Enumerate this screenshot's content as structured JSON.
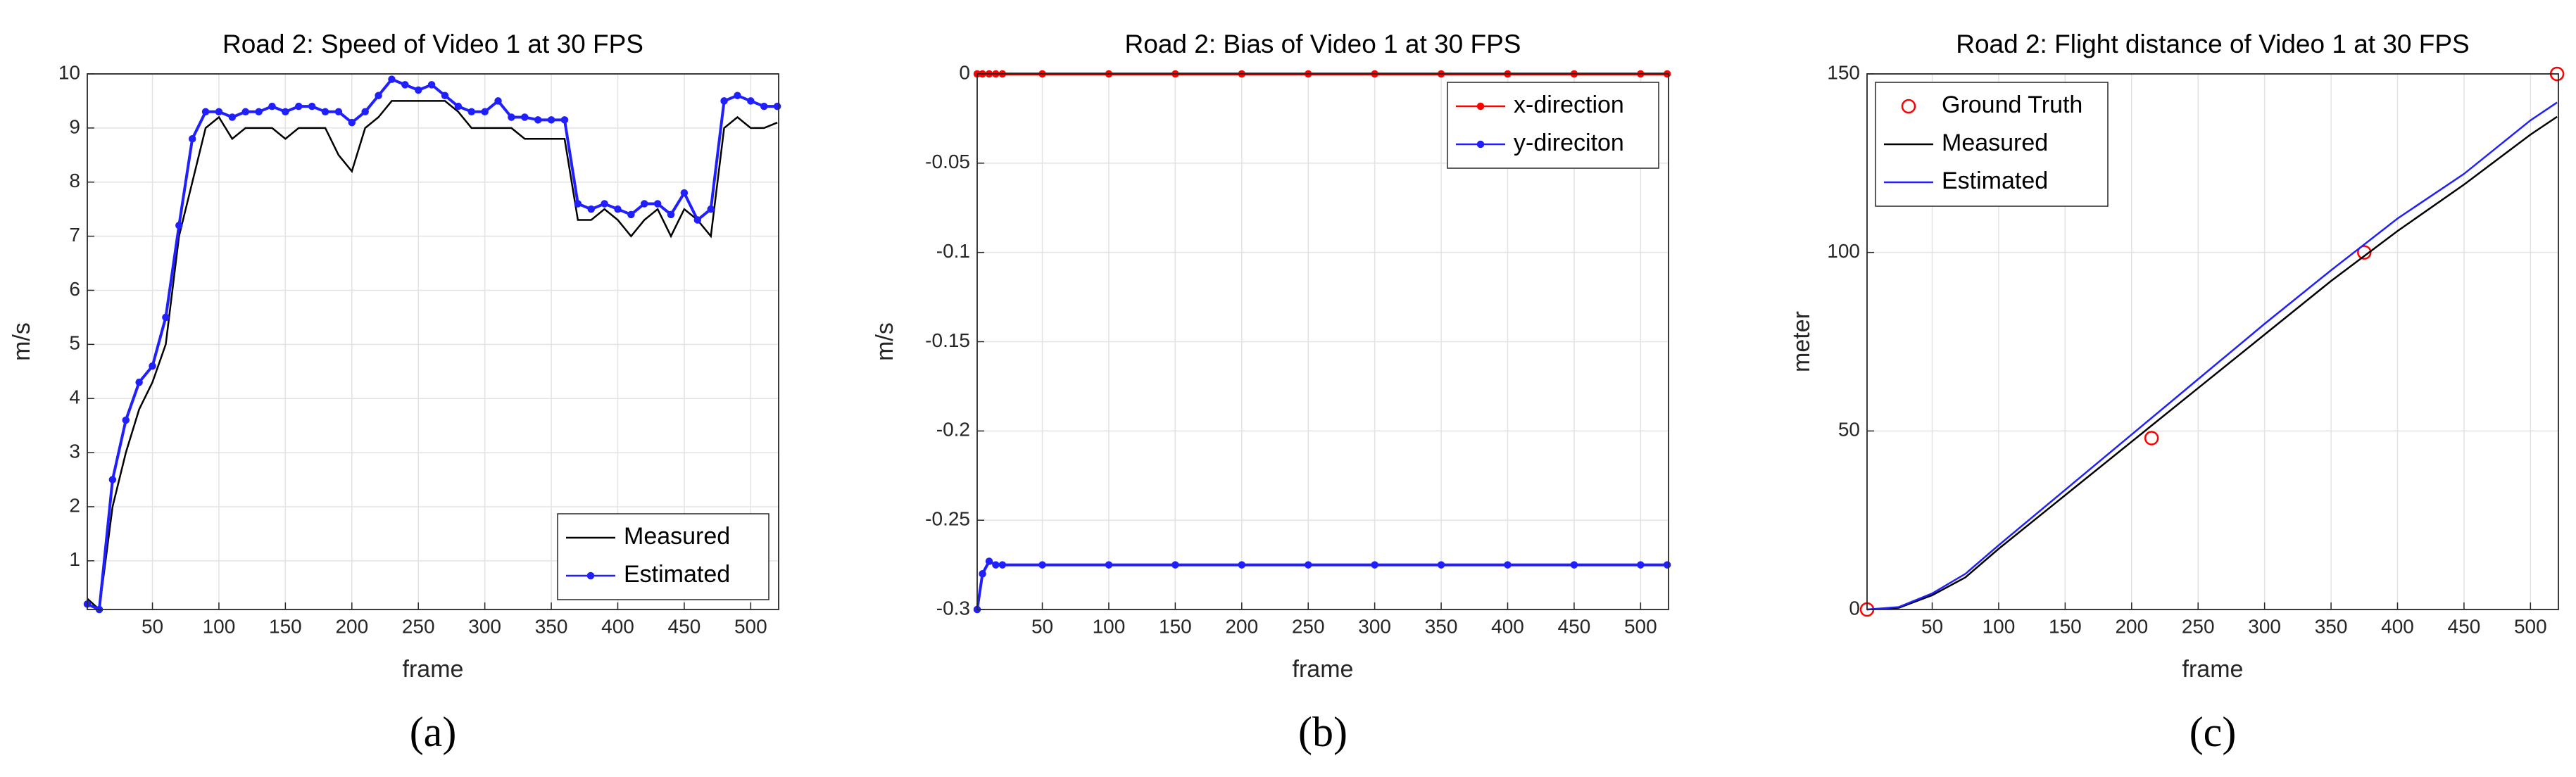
{
  "chart_data": [
    {
      "type": "line",
      "title": "Road 2: Speed of Video 1 at 30 FPS",
      "xlabel": "frame",
      "ylabel": "m/s",
      "caption": "(a)",
      "x": [
        1,
        10,
        20,
        30,
        40,
        50,
        60,
        70,
        80,
        90,
        100,
        110,
        120,
        130,
        140,
        150,
        160,
        170,
        180,
        190,
        200,
        210,
        220,
        230,
        240,
        250,
        260,
        270,
        280,
        290,
        300,
        310,
        320,
        330,
        340,
        350,
        360,
        370,
        380,
        390,
        400,
        410,
        420,
        430,
        440,
        450,
        460,
        470,
        480,
        490,
        500,
        510,
        520
      ],
      "series": [
        {
          "name": "Measured",
          "color": "#000000",
          "values": [
            0.3,
            0.1,
            2.0,
            3.0,
            3.8,
            4.3,
            5.0,
            7.0,
            8.0,
            9.0,
            9.2,
            8.8,
            9.0,
            9.0,
            9.0,
            8.8,
            9.0,
            9.0,
            9.0,
            8.5,
            8.2,
            9.0,
            9.2,
            9.5,
            9.5,
            9.5,
            9.5,
            9.5,
            9.3,
            9.0,
            9.0,
            9.0,
            9.0,
            8.8,
            8.8,
            8.8,
            8.8,
            7.3,
            7.3,
            7.5,
            7.3,
            7.0,
            7.3,
            7.5,
            7.0,
            7.5,
            7.3,
            7.0,
            9.0,
            9.2,
            9.0,
            9.0,
            9.1
          ]
        },
        {
          "name": "Estimated",
          "color": "#1f1fff",
          "marker": ".",
          "values": [
            0.2,
            0.1,
            2.5,
            3.6,
            4.3,
            4.6,
            5.5,
            7.2,
            8.8,
            9.3,
            9.3,
            9.2,
            9.3,
            9.3,
            9.4,
            9.3,
            9.4,
            9.4,
            9.3,
            9.3,
            9.1,
            9.3,
            9.6,
            9.9,
            9.8,
            9.7,
            9.8,
            9.6,
            9.4,
            9.3,
            9.3,
            9.5,
            9.2,
            9.2,
            9.15,
            9.15,
            9.15,
            7.6,
            7.5,
            7.6,
            7.5,
            7.4,
            7.6,
            7.6,
            7.4,
            7.8,
            7.3,
            7.5,
            9.5,
            9.6,
            9.5,
            9.4,
            9.4
          ]
        }
      ],
      "xlim": [
        1,
        521
      ],
      "xticks": [
        50,
        100,
        150,
        200,
        250,
        300,
        350,
        400,
        450,
        500
      ],
      "ylim": [
        0.1,
        10
      ],
      "yticks": [
        1,
        2,
        3,
        4,
        5,
        6,
        7,
        8,
        9,
        10
      ],
      "grid": true,
      "legend": "lower right"
    },
    {
      "type": "line",
      "title": "Road 2: Bias of Video 1 at 30 FPS",
      "xlabel": "frame",
      "ylabel": "m/s",
      "caption": "(b)",
      "x": [
        1,
        5,
        10,
        15,
        20,
        50,
        100,
        150,
        200,
        250,
        300,
        350,
        400,
        450,
        500,
        520
      ],
      "series": [
        {
          "name": "x-direction",
          "color": "#ff0000",
          "marker": ".",
          "values": [
            0,
            0,
            0,
            0,
            0,
            0,
            0,
            0,
            0,
            0,
            0,
            0,
            0,
            0,
            0,
            0
          ]
        },
        {
          "name": "y-direciton",
          "color": "#1f1fff",
          "marker": ".",
          "values": [
            -0.3,
            -0.28,
            -0.273,
            -0.275,
            -0.275,
            -0.275,
            -0.275,
            -0.275,
            -0.275,
            -0.275,
            -0.275,
            -0.275,
            -0.275,
            -0.275,
            -0.275,
            -0.275
          ]
        }
      ],
      "xlim": [
        1,
        521
      ],
      "xticks": [
        50,
        100,
        150,
        200,
        250,
        300,
        350,
        400,
        450,
        500
      ],
      "ylim": [
        -0.3,
        0
      ],
      "yticks": [
        -0.3,
        -0.25,
        -0.2,
        -0.15,
        -0.1,
        -0.05,
        0
      ],
      "grid": true,
      "legend": "upper right"
    },
    {
      "type": "line",
      "title": "Road 2: Flight distance of Video 1 at 30 FPS",
      "xlabel": "frame",
      "ylabel": "meter",
      "caption": "(c)",
      "series": [
        {
          "name": "Ground Truth",
          "color": "#ff0000",
          "marker": "o",
          "line": false,
          "x": [
            1,
            215,
            375,
            520
          ],
          "values": [
            0,
            48,
            100,
            150
          ]
        },
        {
          "name": "Measured",
          "color": "#000000",
          "x": [
            1,
            25,
            50,
            75,
            100,
            150,
            200,
            250,
            300,
            350,
            400,
            450,
            500,
            520
          ],
          "values": [
            0,
            0.5,
            4,
            9,
            17,
            32,
            47,
            62,
            77,
            92,
            106,
            119,
            133,
            138
          ]
        },
        {
          "name": "Estimated",
          "color": "#1f1fff",
          "x": [
            1,
            25,
            50,
            75,
            100,
            150,
            200,
            250,
            300,
            350,
            400,
            450,
            500,
            520
          ],
          "values": [
            0,
            0.7,
            4.5,
            10,
            18,
            33.5,
            49,
            64.5,
            80,
            95,
            109.5,
            122,
            137,
            142
          ]
        }
      ],
      "xlim": [
        1,
        521
      ],
      "xticks": [
        50,
        100,
        150,
        200,
        250,
        300,
        350,
        400,
        450,
        500
      ],
      "ylim": [
        0,
        150
      ],
      "yticks": [
        0,
        50,
        100,
        150
      ],
      "grid": true,
      "legend": "upper left"
    }
  ]
}
